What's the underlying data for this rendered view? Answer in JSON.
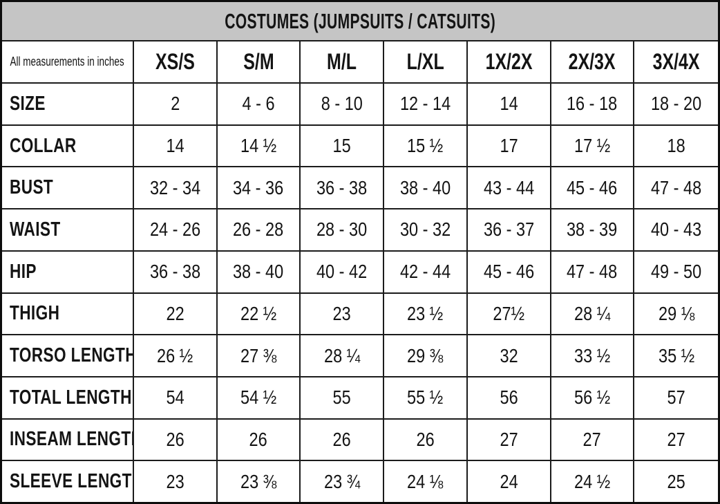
{
  "title": "COSTUMES (JUMPSUITS / CATSUITS)",
  "note": "All measurements in inches",
  "columns": [
    "XS/S",
    "S/M",
    "M/L",
    "L/XL",
    "1X/2X",
    "2X/3X",
    "3X/4X"
  ],
  "rows": [
    {
      "label": "SIZE",
      "values": [
        "2",
        "4 - 6",
        "8 - 10",
        "12 - 14",
        "14",
        "16 - 18",
        "18 - 20"
      ]
    },
    {
      "label": "COLLAR",
      "values": [
        "14",
        "14 ½",
        "15",
        "15 ½",
        "17",
        "17 ½",
        "18"
      ]
    },
    {
      "label": "BUST",
      "values": [
        "32 - 34",
        "34 - 36",
        "36 - 38",
        "38 - 40",
        "43 - 44",
        "45 - 46",
        "47 - 48"
      ]
    },
    {
      "label": "WAIST",
      "values": [
        "24 - 26",
        "26 - 28",
        "28 - 30",
        "30 - 32",
        "36 - 37",
        "38 - 39",
        "40 - 43"
      ]
    },
    {
      "label": "HIP",
      "values": [
        "36 - 38",
        "38 - 40",
        "40 - 42",
        "42 - 44",
        "45 - 46",
        "47 - 48",
        "49 - 50"
      ]
    },
    {
      "label": "THIGH",
      "values": [
        "22",
        "22 ½",
        "23",
        "23 ½",
        "27½",
        "28 ¼",
        "29 ⅛"
      ]
    },
    {
      "label": "TORSO LENGTH",
      "values": [
        "26 ½",
        "27 ⅜",
        "28 ¼",
        "29 ⅜",
        "32",
        "33 ½",
        "35 ½"
      ]
    },
    {
      "label": "TOTAL LENGTH",
      "values": [
        "54",
        "54 ½",
        "55",
        "55 ½",
        "56",
        "56 ½",
        "57"
      ]
    },
    {
      "label": "INSEAM LENGTH",
      "values": [
        "26",
        "26",
        "26",
        "26",
        "27",
        "27",
        "27"
      ]
    },
    {
      "label": "SLEEVE LENGTH",
      "values": [
        "23",
        "23 ⅜",
        "23 ¾",
        "24 ⅛",
        "24",
        "24 ½",
        "25"
      ]
    }
  ],
  "colors": {
    "title_bg": "#c5c5c5",
    "border": "#1b1b1b",
    "text": "#141414",
    "background": "#ffffff"
  }
}
